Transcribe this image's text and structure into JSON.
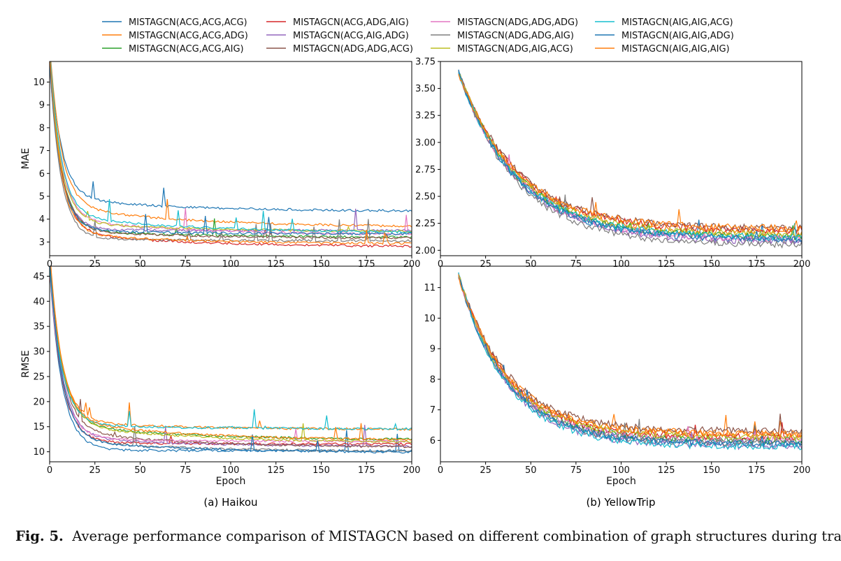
{
  "figure": {
    "caption_label": "Fig. 5.",
    "caption_text": "Average performance comparison of MISTAGCN based on different combination of graph structures during training."
  },
  "legend": [
    {
      "name": "MISTAGCN(ACG,ACG,ACG)",
      "color": "#1f77b4"
    },
    {
      "name": "MISTAGCN(ACG,ACG,ADG)",
      "color": "#ff7f0e"
    },
    {
      "name": "MISTAGCN(ACG,ACG,AIG)",
      "color": "#2ca02c"
    },
    {
      "name": "MISTAGCN(ACG,ADG,AIG)",
      "color": "#d62728"
    },
    {
      "name": "MISTAGCN(ACG,AIG,ADG)",
      "color": "#9467bd"
    },
    {
      "name": "MISTAGCN(ADG,ADG,ACG)",
      "color": "#8c564b"
    },
    {
      "name": "MISTAGCN(ADG,ADG,ADG)",
      "color": "#e377c2"
    },
    {
      "name": "MISTAGCN(ADG,ADG,AIG)",
      "color": "#7f7f7f"
    },
    {
      "name": "MISTAGCN(ADG,AIG,ACG)",
      "color": "#bcbd22"
    },
    {
      "name": "MISTAGCN(AIG,AIG,ACG)",
      "color": "#17becf"
    },
    {
      "name": "MISTAGCN(AIG,AIG,ADG)",
      "color": "#1f77b4"
    },
    {
      "name": "MISTAGCN(AIG,AIG,AIG)",
      "color": "#ff7f0e"
    }
  ],
  "chart_data": [
    {
      "id": "haikou-mae",
      "type": "line",
      "ylabel": "MAE",
      "xlabel": "",
      "xlim": [
        0,
        200
      ],
      "ylim": [
        2.4,
        10.9
      ],
      "xticks": [
        0,
        25,
        50,
        75,
        100,
        125,
        150,
        175,
        200
      ],
      "yticks": [
        3,
        4,
        5,
        6,
        7,
        8,
        9,
        10
      ],
      "ytick_labels": [
        "3",
        "4",
        "5",
        "6",
        "7",
        "8",
        "9",
        "10"
      ],
      "x_start": 0,
      "start_value": 10.7,
      "series_final": [
        4.33,
        3.65,
        3.2,
        2.78,
        3.5,
        3.15,
        3.3,
        3.05,
        3.45,
        3.4,
        3.35,
        2.9
      ]
    },
    {
      "id": "yellowtrip-mae",
      "type": "line",
      "ylabel": "",
      "xlabel": "",
      "xlim": [
        0,
        200
      ],
      "ylim": [
        1.95,
        3.75
      ],
      "xticks": [
        0,
        25,
        50,
        75,
        100,
        125,
        150,
        175,
        200
      ],
      "yticks": [
        2.0,
        2.25,
        2.5,
        2.75,
        3.0,
        3.25,
        3.5,
        3.75
      ],
      "ytick_labels": [
        "2.00",
        "2.25",
        "2.50",
        "2.75",
        "3.00",
        "3.25",
        "3.50",
        "3.75"
      ],
      "x_start": 10,
      "start_value": 3.65,
      "series_final": [
        2.1,
        2.15,
        2.12,
        2.18,
        2.08,
        2.2,
        2.1,
        2.05,
        2.15,
        2.12,
        2.1,
        2.2
      ]
    },
    {
      "id": "haikou-rmse",
      "type": "line",
      "ylabel": "RMSE",
      "xlabel": "Epoch",
      "xlim": [
        0,
        200
      ],
      "ylim": [
        8,
        47
      ],
      "xticks": [
        0,
        25,
        50,
        75,
        100,
        125,
        150,
        175,
        200
      ],
      "yticks": [
        10,
        15,
        20,
        25,
        30,
        35,
        40,
        45
      ],
      "ytick_labels": [
        "10",
        "15",
        "20",
        "25",
        "30",
        "35",
        "40",
        "45"
      ],
      "x_start": 0,
      "start_value": 46,
      "series_final": [
        10.2,
        14.4,
        12.3,
        11.5,
        11.0,
        10.8,
        12.0,
        10.0,
        11.8,
        14.5,
        9.8,
        12.2
      ]
    },
    {
      "id": "yellowtrip-rmse",
      "type": "line",
      "ylabel": "",
      "xlabel": "Epoch",
      "xlim": [
        0,
        200
      ],
      "ylim": [
        5.3,
        11.7
      ],
      "xticks": [
        0,
        25,
        50,
        75,
        100,
        125,
        150,
        175,
        200
      ],
      "yticks": [
        6,
        7,
        8,
        9,
        10,
        11
      ],
      "ytick_labels": [
        "6",
        "7",
        "8",
        "9",
        "10",
        "11"
      ],
      "x_start": 10,
      "start_value": 11.4,
      "series_final": [
        5.9,
        6.2,
        6.0,
        6.1,
        5.8,
        6.3,
        6.0,
        5.9,
        6.1,
        5.8,
        5.9,
        6.2
      ]
    }
  ],
  "subtitles": [
    "(a) Haikou",
    "(b) YellowTrip"
  ]
}
